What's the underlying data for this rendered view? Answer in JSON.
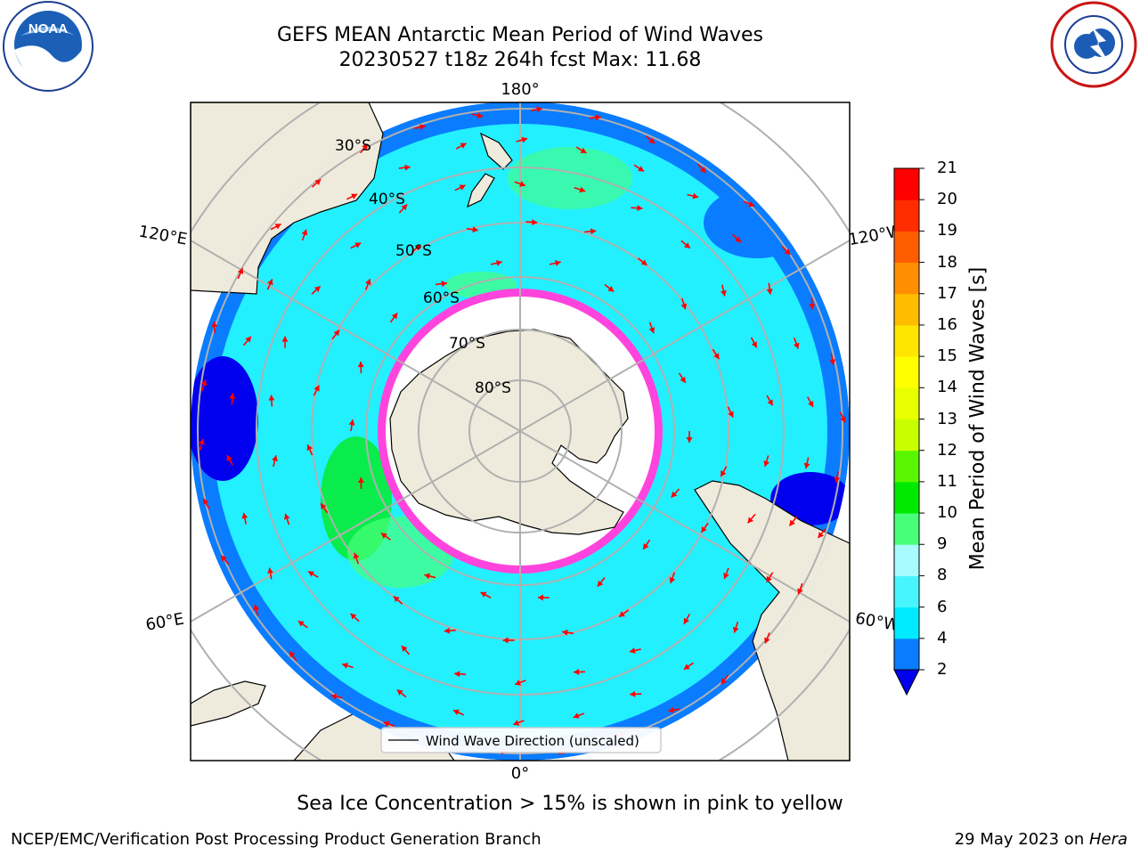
{
  "title": {
    "line1": "GEFS MEAN Antarctic Mean Period of Wind Waves",
    "line2": "20230527 t18z 264h fcst   Max: 11.68"
  },
  "map": {
    "projection": "south-polar-stereographic",
    "lat_labels": [
      "30°S",
      "40°S",
      "50°S",
      "60°S",
      "70°S",
      "80°S"
    ],
    "lon_labels": {
      "top": "180°",
      "bottom": "0°",
      "upper_left": "120°E",
      "upper_right": "120°W",
      "lower_left": "60°E",
      "lower_right": "60°W"
    },
    "legend": "Wind Wave Direction (unscaled)",
    "colors": {
      "land": "#efebdc",
      "ocean": "#22f0ff",
      "low": "#0a7cff",
      "ice": "#ff44dd",
      "arrow": "#ff0000"
    }
  },
  "colorbar": {
    "label": "Mean Period of Wind Waves [s]",
    "ticks": [
      "2",
      "4",
      "6",
      "8",
      "9",
      "10",
      "11",
      "12",
      "13",
      "14",
      "15",
      "16",
      "17",
      "18",
      "19",
      "20",
      "21"
    ],
    "colors": [
      "#0a7cff",
      "#00ebff",
      "#48f5ff",
      "#a8fbff",
      "#48ff7a",
      "#00ea00",
      "#5af500",
      "#c8ff00",
      "#e8ff00",
      "#ffff00",
      "#ffe600",
      "#ffbd00",
      "#ff8f00",
      "#ff5e00",
      "#ff2c00",
      "#ff0000"
    ],
    "under_color": "#0000ee"
  },
  "caption": "Sea Ice Concentration > 15% is shown in pink to yellow",
  "footer": {
    "left": "NCEP/EMC/Verification Post Processing Product Generation Branch",
    "right_date": "29 May 2023 on ",
    "right_machine": "Hera"
  },
  "logos": {
    "left": "NOAA",
    "right": "NATIONAL WEATHER SERVICE"
  }
}
